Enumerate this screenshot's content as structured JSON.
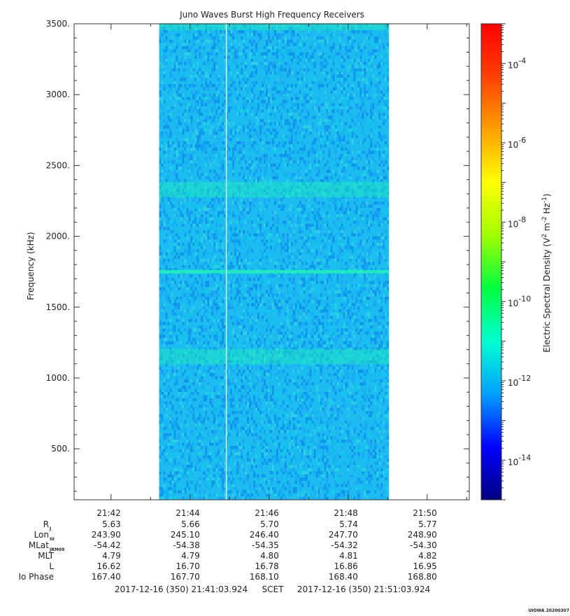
{
  "chart_data": {
    "type": "heatmap",
    "title": "Juno Waves Burst High Frequency Receivers",
    "ylabel": "Frequency (kHz)",
    "colorbar_label_parts": [
      "Electric Spectral Density (V",
      "2",
      " m",
      "-2",
      " Hz",
      "-1",
      ")"
    ],
    "y_range": [
      140,
      3500
    ],
    "y_ticks": [
      {
        "value": 500,
        "label": "500."
      },
      {
        "value": 1000,
        "label": "1000."
      },
      {
        "value": 1500,
        "label": "1500."
      },
      {
        "value": 2000,
        "label": "2000."
      },
      {
        "value": 2500,
        "label": "2500."
      },
      {
        "value": 3000,
        "label": "3000."
      },
      {
        "value": 3500,
        "label": "3500."
      }
    ],
    "x_range": [
      "21:41:03.924",
      "21:51:03.924"
    ],
    "x_ticks": [
      "21:42",
      "21:44",
      "21:46",
      "21:48",
      "21:50"
    ],
    "data_interval": {
      "start": "21:43:13",
      "end": "21:49:02"
    },
    "vertical_line": "21:44:55",
    "enhanced_bands_khz": [
      {
        "center": 3480,
        "label": "top edge"
      },
      {
        "center": 2330
      },
      {
        "center": 1750
      },
      {
        "center": 1150
      }
    ],
    "colorscale": {
      "scale": "log",
      "range": [
        1e-15,
        0.001
      ],
      "colors": [
        "#000080",
        "#0000ff",
        "#00a0ff",
        "#00ffd0",
        "#00ff40",
        "#a0ff00",
        "#ffff00",
        "#ffa000",
        "#ff4000",
        "#ff0000"
      ],
      "ticks": [
        {
          "base": "10",
          "exp": "-4"
        },
        {
          "base": "10",
          "exp": "-6"
        },
        {
          "base": "10",
          "exp": "-8"
        },
        {
          "base": "10",
          "exp": "-10"
        },
        {
          "base": "10",
          "exp": "-12"
        },
        {
          "base": "10",
          "exp": "-14"
        }
      ]
    }
  },
  "ephemeris": {
    "rows": [
      {
        "label": "R",
        "sub": "J",
        "values": [
          "5.63",
          "5.66",
          "5.70",
          "5.74",
          "5.77"
        ]
      },
      {
        "label": "Lon",
        "sub": "III",
        "values": [
          "243.90",
          "245.10",
          "246.40",
          "247.70",
          "248.90"
        ]
      },
      {
        "label": "MLat",
        "sub": "JRM09",
        "values": [
          "-54.42",
          "-54.38",
          "-54.35",
          "-54.32",
          "-54.30"
        ]
      },
      {
        "label": "MLT",
        "sub": "",
        "values": [
          "4.79",
          "4.79",
          "4.80",
          "4.81",
          "4.82"
        ]
      },
      {
        "label": "L",
        "sub": "",
        "values": [
          "16.62",
          "16.70",
          "16.78",
          "16.86",
          "16.95"
        ]
      },
      {
        "label": "Io Phase",
        "sub": "",
        "values": [
          "167.40",
          "167.70",
          "168.10",
          "168.40",
          "168.80"
        ]
      }
    ]
  },
  "footer": {
    "start": "2017-12-16 (350) 21:41:03.924",
    "scet": "SCET",
    "end": "2017-12-16 (350) 21:51:03.924"
  },
  "stamp": "UIOWA 20200307"
}
